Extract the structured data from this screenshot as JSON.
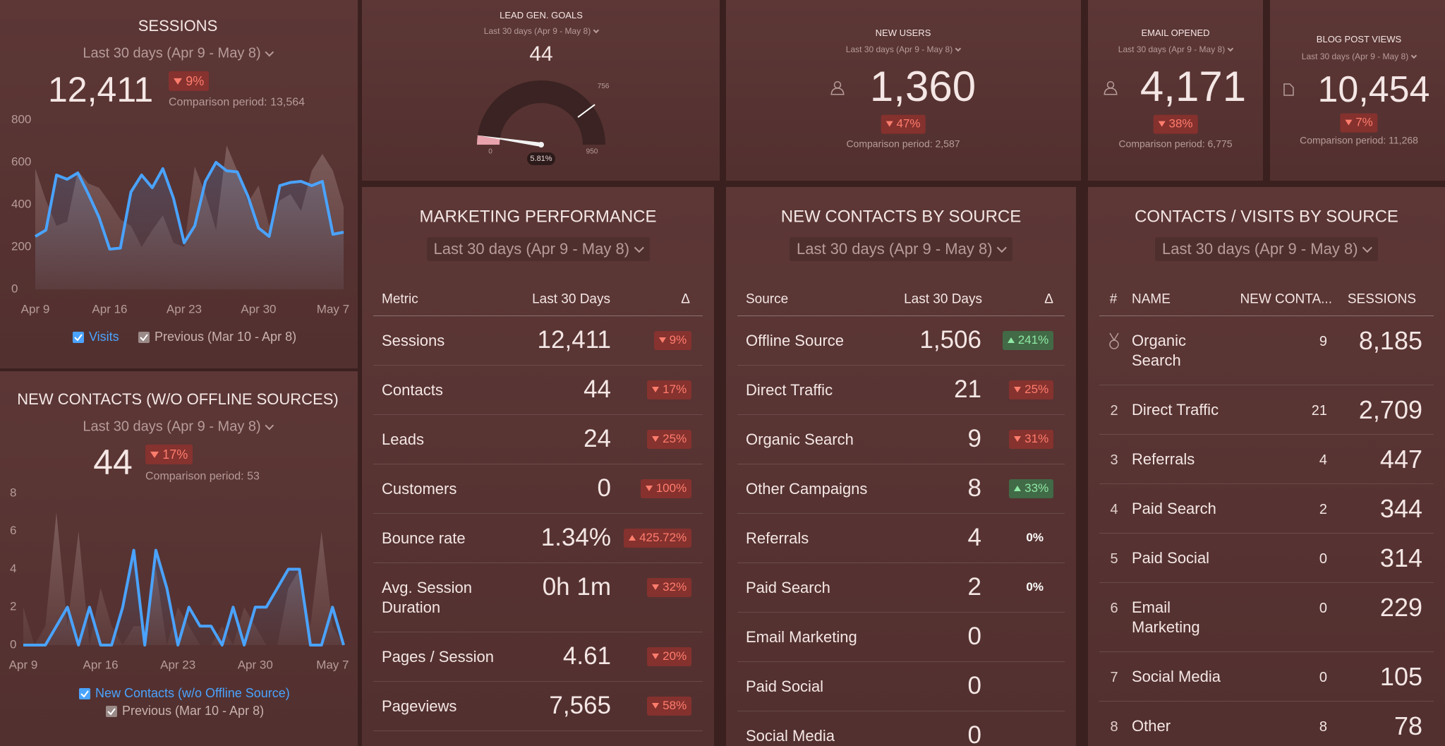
{
  "sessions": {
    "title": "SESSIONS",
    "period": "Last 30 days (Apr 9 - May 8)",
    "value": "12,411",
    "delta": "9%",
    "trend": "down",
    "tone": "red",
    "comparison": "Comparison period: 13,564",
    "chart": {
      "type": "line",
      "categories": [
        "Apr 9",
        null,
        null,
        null,
        null,
        null,
        null,
        "Apr 16",
        null,
        null,
        null,
        null,
        null,
        null,
        "Apr 23",
        null,
        null,
        null,
        null,
        null,
        null,
        "Apr 30",
        null,
        null,
        null,
        null,
        null,
        null,
        "May 7",
        null
      ],
      "ylim": [
        0,
        800
      ],
      "yticks": [
        0,
        200,
        400,
        600,
        800
      ],
      "series": [
        {
          "name": "Visits",
          "color": "#4aa3ff",
          "values": [
            250,
            280,
            540,
            520,
            550,
            450,
            340,
            190,
            195,
            460,
            540,
            480,
            570,
            430,
            220,
            300,
            510,
            600,
            560,
            555,
            440,
            290,
            250,
            490,
            505,
            510,
            490,
            510,
            260,
            270
          ]
        },
        {
          "name": "Previous (Mar 10 - Apr 8)",
          "color": "#8c6e6c",
          "values": [
            570,
            420,
            300,
            320,
            560,
            500,
            480,
            410,
            330,
            300,
            200,
            280,
            350,
            220,
            200,
            580,
            450,
            280,
            680,
            560,
            410,
            490,
            300,
            420,
            450,
            370,
            560,
            640,
            560,
            390
          ]
        }
      ]
    }
  },
  "new_contacts": {
    "title": "NEW CONTACTS (W/O OFFLINE SOURCES)",
    "period": "Last 30 days (Apr 9 - May 8)",
    "value": 44,
    "delta": "17%",
    "trend": "down",
    "tone": "red",
    "comparison": "Comparison period: 53",
    "chart": {
      "type": "line",
      "categories": [
        "Apr 9",
        null,
        null,
        null,
        null,
        null,
        null,
        "Apr 16",
        null,
        null,
        null,
        null,
        null,
        null,
        "Apr 23",
        null,
        null,
        null,
        null,
        null,
        null,
        "Apr 30",
        null,
        null,
        null,
        null,
        null,
        null,
        "May 7",
        null
      ],
      "ylim": [
        0,
        8
      ],
      "yticks": [
        0,
        2,
        4,
        6,
        8
      ],
      "series": [
        {
          "name": "New Contacts (w/o Offline Source)",
          "color": "#4aa3ff",
          "values": [
            0,
            0,
            0,
            1,
            2,
            0,
            2,
            0,
            0,
            2,
            5,
            0,
            5,
            3,
            0,
            2,
            1,
            1,
            0,
            2,
            0,
            2,
            2,
            3,
            4,
            4,
            0,
            0,
            2,
            0
          ]
        },
        {
          "name": "Previous (Mar 10 - Apr 8)",
          "color": "#8c6e6c",
          "values": [
            2,
            0,
            1,
            7,
            1,
            6,
            0,
            3,
            1,
            0,
            1,
            1,
            4,
            0,
            2,
            1,
            0,
            0,
            1,
            0,
            2,
            1,
            0,
            0,
            3,
            4,
            1,
            6,
            1,
            0
          ]
        }
      ]
    }
  },
  "lead_gen": {
    "title": "LEAD GEN. GOALS",
    "period": "Last 30 days (Apr 9 - May 8)",
    "value": 44,
    "gauge": {
      "min": 0,
      "max": 950,
      "target": 756,
      "percent": {
        "value": 5.81,
        "label": "5.81%"
      },
      "color": "#e8a3ad"
    }
  },
  "new_users": {
    "title": "NEW USERS",
    "period": "Last 30 days (Apr 9 - May 8)",
    "value": "1,360",
    "delta": "47%",
    "trend": "down",
    "tone": "red",
    "comparison": "Comparison period: 2,587"
  },
  "email_opened": {
    "title": "EMAIL OPENED",
    "period": "Last 30 days (Apr 9 - May 8)",
    "value": "4,171",
    "delta": "38%",
    "trend": "down",
    "tone": "red",
    "comparison": "Comparison period: 6,775"
  },
  "blog_post_views": {
    "title": "BLOG POST VIEWS",
    "period": "Last 30 days (Apr 9 - May 8)",
    "value": "10,454",
    "delta": "7%",
    "trend": "down",
    "tone": "red",
    "comparison": "Comparison period: 11,268"
  },
  "marketing_performance": {
    "title": "MARKETING PERFORMANCE",
    "period": "Last 30 days (Apr 9 - May 8)",
    "columns": [
      "Metric",
      "Last 30 Days",
      "Δ"
    ],
    "rows": [
      {
        "metric": "Sessions",
        "value": "12,411",
        "delta": "9%",
        "trend": "down",
        "tone": "red"
      },
      {
        "metric": "Contacts",
        "value": "44",
        "delta": "17%",
        "trend": "down",
        "tone": "red"
      },
      {
        "metric": "Leads",
        "value": "24",
        "delta": "25%",
        "trend": "down",
        "tone": "red"
      },
      {
        "metric": "Customers",
        "value": "0",
        "delta": "100%",
        "trend": "down",
        "tone": "red"
      },
      {
        "metric": "Bounce rate",
        "value": "1.34%",
        "delta": "425.72%",
        "trend": "up",
        "tone": "red"
      },
      {
        "metric": "Avg. Session Duration",
        "value": "0h 1m",
        "delta": "32%",
        "trend": "down",
        "tone": "red"
      },
      {
        "metric": "Pages / Session",
        "value": "4.61",
        "delta": "20%",
        "trend": "down",
        "tone": "red"
      },
      {
        "metric": "Pageviews",
        "value": "7,565",
        "delta": "58%",
        "trend": "down",
        "tone": "red"
      }
    ]
  },
  "contacts_by_source": {
    "title": "NEW CONTACTS BY SOURCE",
    "period": "Last 30 days (Apr 9 - May 8)",
    "columns": [
      "Source",
      "Last 30 Days",
      "Δ"
    ],
    "rows": [
      {
        "source": "Offline Source",
        "value": "1,506",
        "delta": "241%",
        "trend": "up",
        "tone": "green"
      },
      {
        "source": "Direct Traffic",
        "value": "21",
        "delta": "25%",
        "trend": "down",
        "tone": "red"
      },
      {
        "source": "Organic Search",
        "value": "9",
        "delta": "31%",
        "trend": "down",
        "tone": "red"
      },
      {
        "source": "Other Campaigns",
        "value": "8",
        "delta": "33%",
        "trend": "up",
        "tone": "green"
      },
      {
        "source": "Referrals",
        "value": "4",
        "delta": "0%"
      },
      {
        "source": "Paid Search",
        "value": "2",
        "delta": "0%"
      },
      {
        "source": "Email Marketing",
        "value": "0"
      },
      {
        "source": "Paid Social",
        "value": "0"
      },
      {
        "source": "Social Media",
        "value": "0"
      }
    ]
  },
  "contacts_visits": {
    "title": "CONTACTS / VISITS BY SOURCE",
    "period": "Last 30 days (Apr 9 - May 8)",
    "columns": [
      "#",
      "NAME",
      "NEW CONTA...",
      "SESSIONS"
    ],
    "rows": [
      {
        "rank": null,
        "name": "Organic Search",
        "contacts": "9",
        "sessions": "8,185"
      },
      {
        "rank": 2,
        "name": "Direct Traffic",
        "contacts": "21",
        "sessions": "2,709"
      },
      {
        "rank": 3,
        "name": "Referrals",
        "contacts": "4",
        "sessions": "447"
      },
      {
        "rank": 4,
        "name": "Paid Search",
        "contacts": "2",
        "sessions": "344"
      },
      {
        "rank": 5,
        "name": "Paid Social",
        "contacts": "0",
        "sessions": "314"
      },
      {
        "rank": 6,
        "name": "Email Marketing",
        "contacts": "0",
        "sessions": "229"
      },
      {
        "rank": 7,
        "name": "Social Media",
        "contacts": "0",
        "sessions": "105"
      },
      {
        "rank": 8,
        "name": "Other",
        "contacts": "8",
        "sessions": "78"
      }
    ]
  }
}
